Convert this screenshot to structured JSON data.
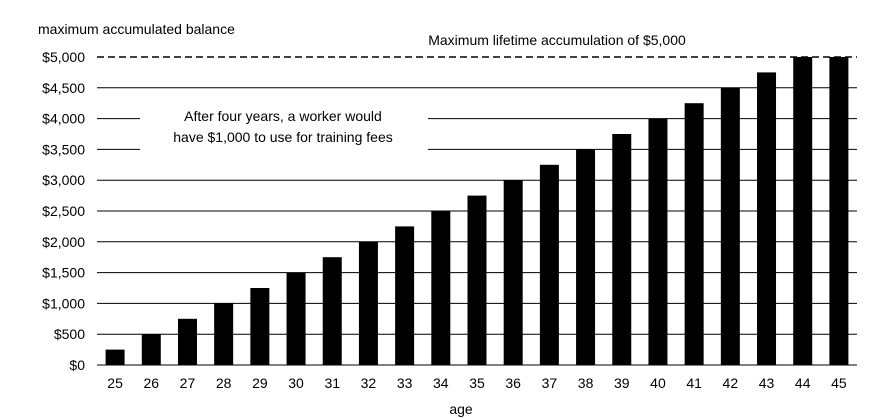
{
  "chart_data": {
    "type": "bar",
    "ylabel": "maximum accumulated balance",
    "xlabel": "age",
    "categories": [
      "25",
      "26",
      "27",
      "28",
      "29",
      "30",
      "31",
      "32",
      "33",
      "34",
      "35",
      "36",
      "37",
      "38",
      "39",
      "40",
      "41",
      "42",
      "43",
      "44",
      "45"
    ],
    "values": [
      250,
      500,
      750,
      1000,
      1250,
      1500,
      1750,
      2000,
      2250,
      2500,
      2750,
      3000,
      3250,
      3500,
      3750,
      4000,
      4250,
      4500,
      4750,
      5000,
      5000
    ],
    "ylim": [
      0,
      5000
    ],
    "yticks": [
      0,
      500,
      1000,
      1500,
      2000,
      2500,
      3000,
      3500,
      4000,
      4500,
      5000
    ],
    "ytick_labels": [
      "$0",
      "$500",
      "$1,000",
      "$1,500",
      "$2,000",
      "$2,500",
      "$3,000",
      "$3,500",
      "$4,000",
      "$4,500",
      "$5,000"
    ],
    "grid": "horizontal",
    "bar_color": "#000000",
    "grid_color": "#000000",
    "reference_line": {
      "value": 5000,
      "style": "dashed",
      "label": "Maximum lifetime accumulation of $5,000"
    },
    "annotation": {
      "lines": [
        "After four years, a worker would",
        "have  $1,000 to use for training fees"
      ]
    }
  }
}
